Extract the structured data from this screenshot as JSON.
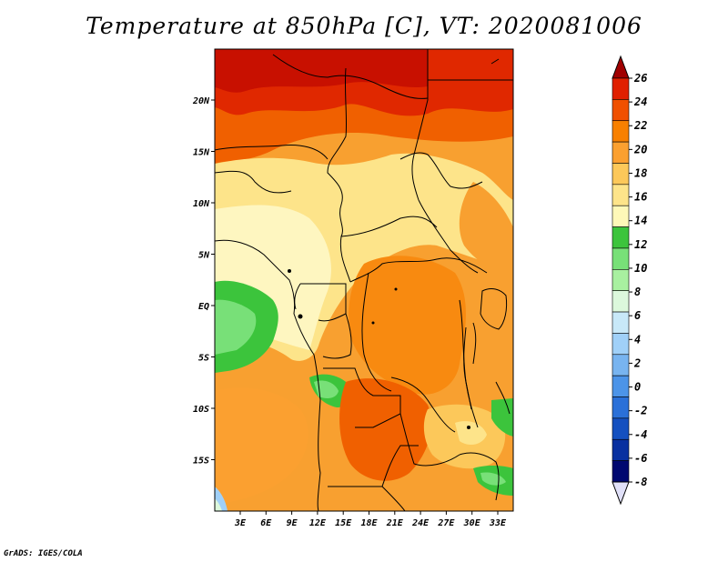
{
  "title": "Temperature at 850hPa [C], VT: 2020081006",
  "credit": "GrADS: IGES/COLA",
  "map": {
    "lon_ticks": [
      "3E",
      "6E",
      "9E",
      "12E",
      "15E",
      "18E",
      "21E",
      "24E",
      "27E",
      "30E",
      "33E"
    ],
    "lat_ticks": [
      "20N",
      "15N",
      "10N",
      "5N",
      "EQ",
      "5S",
      "10S",
      "15S"
    ]
  },
  "colorbar": {
    "levels": [
      "26",
      "24",
      "22",
      "20",
      "18",
      "16",
      "14",
      "12",
      "10",
      "8",
      "6",
      "4",
      "2",
      "0",
      "-2",
      "-4",
      "-6",
      "-8"
    ],
    "colors": [
      "#a00000",
      "#e02000",
      "#f05000",
      "#f88000",
      "#fba030",
      "#fcc85a",
      "#fde48a",
      "#fef8b8",
      "#3cc43c",
      "#78e078",
      "#a8f0a0",
      "#dcf8dc",
      "#c8e8f8",
      "#a0d0f8",
      "#78b4f0",
      "#4c94e8",
      "#2a70d8",
      "#1450c0",
      "#0830a0",
      "#000870",
      "#e0e0f8"
    ]
  }
}
